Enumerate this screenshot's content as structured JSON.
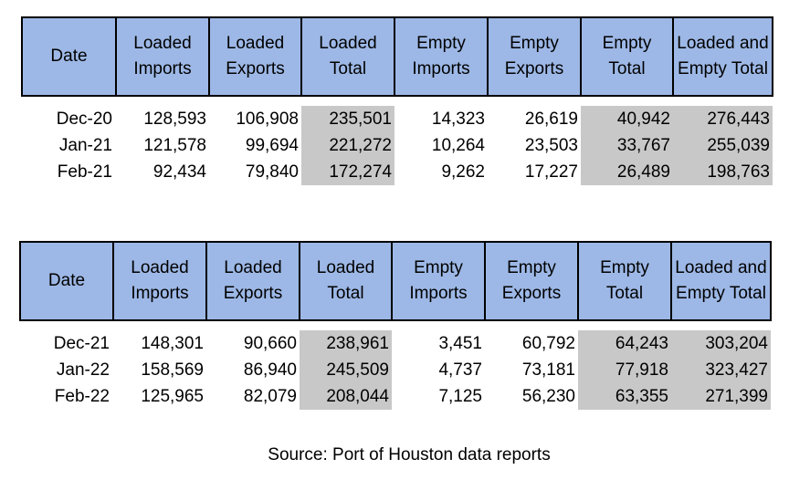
{
  "headers": [
    "Date",
    "Loaded Imports",
    "Loaded Exports",
    "Loaded Total",
    "Empty Imports",
    "Empty Exports",
    "Empty Total",
    "Loaded and Empty Total"
  ],
  "tables": [
    {
      "rows": [
        [
          "Dec-20",
          "128,593",
          "106,908",
          "235,501",
          "14,323",
          "26,619",
          "40,942",
          "276,443"
        ],
        [
          "Jan-21",
          "121,578",
          "99,694",
          "221,272",
          "10,264",
          "23,503",
          "33,767",
          "255,039"
        ],
        [
          "Feb-21",
          "92,434",
          "79,840",
          "172,274",
          "9,262",
          "17,227",
          "26,489",
          "198,763"
        ]
      ]
    },
    {
      "rows": [
        [
          "Dec-21",
          "148,301",
          "90,660",
          "238,961",
          "3,451",
          "60,792",
          "64,243",
          "303,204"
        ],
        [
          "Jan-22",
          "158,569",
          "86,940",
          "245,509",
          "4,737",
          "73,181",
          "77,918",
          "323,427"
        ],
        [
          "Feb-22",
          "125,965",
          "82,079",
          "208,044",
          "7,125",
          "56,230",
          "63,355",
          "271,399"
        ]
      ]
    }
  ],
  "colors": {
    "header_fill": "#9db8e6",
    "total_shade": "#c8c8c8"
  },
  "source": "Source: Port of Houston data reports"
}
